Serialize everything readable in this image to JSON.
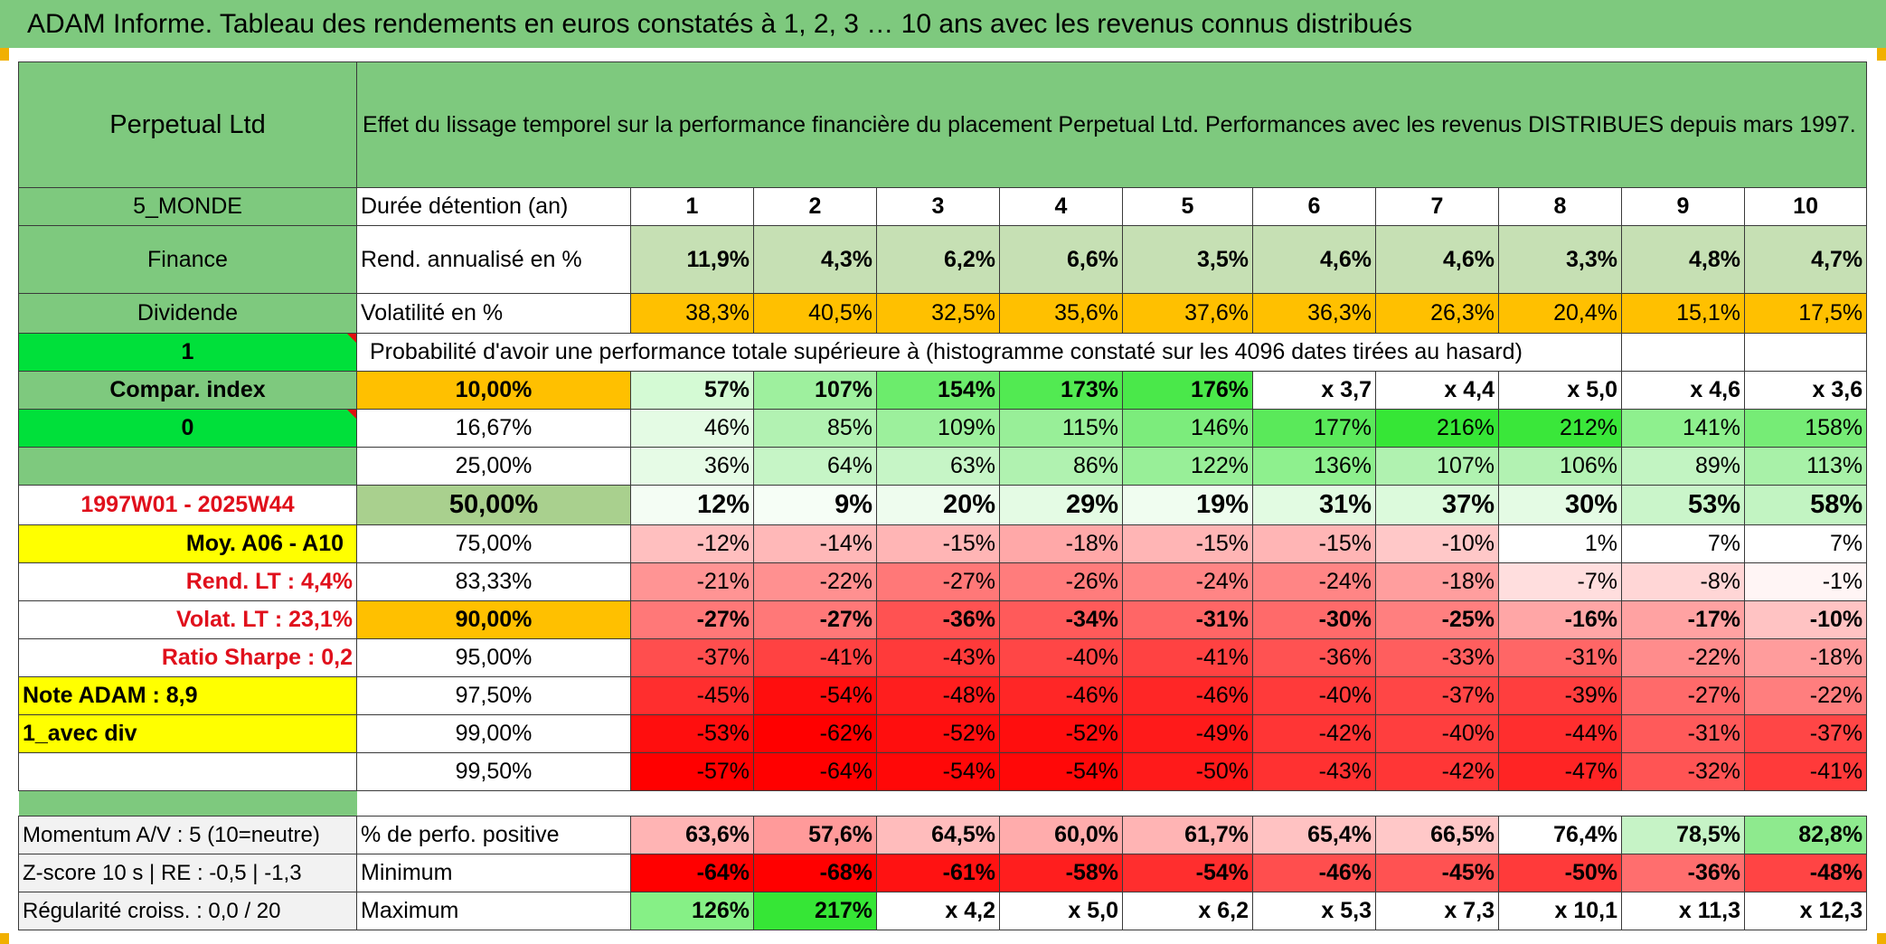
{
  "title": "ADAM Informe. Tableau des rendements en euros constatés à 1, 2, 3 … 10 ans avec les revenus connus distribués",
  "side": {
    "fund_name": "Perpetual Ltd",
    "zone": "5_MONDE",
    "sector": "Finance",
    "income": "Dividende",
    "flag1": "1",
    "compar_index": "Compar. index",
    "flag2": "0",
    "period": "1997W01 - 2025W44",
    "avg_label": "Moy. A06 - A10",
    "rend_lt": "Rend. LT :   4,4%",
    "volat_lt": "Volat. LT :   23,1%",
    "sharpe": "Ratio Sharpe :    0,2",
    "note": "Note ADAM : 8,9",
    "mode": "1_avec div",
    "momentum": "Momentum A/V : 5 (10=neutre)",
    "zscore": "Z-score 10 s | RE : -0,5 | -1,3",
    "regularite": "Régularité croiss. : 0,0 / 20"
  },
  "header_text": "Effet du lissage temporel sur la performance financière du placement Perpetual Ltd. Performances avec les revenus DISTRIBUES depuis mars 1997.",
  "years_label": "Durée détention (an)",
  "years": [
    "1",
    "2",
    "3",
    "4",
    "5",
    "6",
    "7",
    "8",
    "9",
    "10"
  ],
  "rend_label": "Rend. annualisé en %",
  "rend": [
    "11,9%",
    "4,3%",
    "6,2%",
    "6,6%",
    "3,5%",
    "4,6%",
    "4,6%",
    "3,3%",
    "4,8%",
    "4,7%"
  ],
  "vol_label": "Volatilité en %",
  "vol": [
    "38,3%",
    "40,5%",
    "32,5%",
    "35,6%",
    "37,6%",
    "36,3%",
    "26,3%",
    "20,4%",
    "15,1%",
    "17,5%"
  ],
  "prob_text": "Probabilité d'avoir une performance totale supérieure à (histogramme constaté sur les 4096 dates tirées au hasard)",
  "quantiles": [
    {
      "p": "10,00%",
      "vals": [
        "57%",
        "107%",
        "154%",
        "173%",
        "176%",
        "x 3,7",
        "x 4,4",
        "x 5,0",
        "x 4,6",
        "x 3,6"
      ]
    },
    {
      "p": "16,67%",
      "vals": [
        "46%",
        "85%",
        "109%",
        "115%",
        "146%",
        "177%",
        "216%",
        "212%",
        "141%",
        "158%"
      ]
    },
    {
      "p": "25,00%",
      "vals": [
        "36%",
        "64%",
        "63%",
        "86%",
        "122%",
        "136%",
        "107%",
        "106%",
        "89%",
        "113%"
      ]
    },
    {
      "p": "50,00%",
      "vals": [
        "12%",
        "9%",
        "20%",
        "29%",
        "19%",
        "31%",
        "37%",
        "30%",
        "53%",
        "58%"
      ]
    },
    {
      "p": "75,00%",
      "vals": [
        "-12%",
        "-14%",
        "-15%",
        "-18%",
        "-15%",
        "-15%",
        "-10%",
        "1%",
        "7%",
        "7%"
      ]
    },
    {
      "p": "83,33%",
      "vals": [
        "-21%",
        "-22%",
        "-27%",
        "-26%",
        "-24%",
        "-24%",
        "-18%",
        "-7%",
        "-8%",
        "-1%"
      ]
    },
    {
      "p": "90,00%",
      "vals": [
        "-27%",
        "-27%",
        "-36%",
        "-34%",
        "-31%",
        "-30%",
        "-25%",
        "-16%",
        "-17%",
        "-10%"
      ]
    },
    {
      "p": "95,00%",
      "vals": [
        "-37%",
        "-41%",
        "-43%",
        "-40%",
        "-41%",
        "-36%",
        "-33%",
        "-31%",
        "-22%",
        "-18%"
      ]
    },
    {
      "p": "97,50%",
      "vals": [
        "-45%",
        "-54%",
        "-48%",
        "-46%",
        "-46%",
        "-40%",
        "-37%",
        "-39%",
        "-27%",
        "-22%"
      ]
    },
    {
      "p": "99,00%",
      "vals": [
        "-53%",
        "-62%",
        "-52%",
        "-52%",
        "-49%",
        "-42%",
        "-40%",
        "-44%",
        "-31%",
        "-37%"
      ]
    },
    {
      "p": "99,50%",
      "vals": [
        "-57%",
        "-64%",
        "-54%",
        "-54%",
        "-50%",
        "-43%",
        "-42%",
        "-47%",
        "-32%",
        "-41%"
      ]
    }
  ],
  "pos_label": "% de perfo. positive",
  "pos": [
    "63,6%",
    "57,6%",
    "64,5%",
    "60,0%",
    "61,7%",
    "65,4%",
    "66,5%",
    "76,4%",
    "78,5%",
    "82,8%"
  ],
  "min_label": "Minimum",
  "min": [
    "-64%",
    "-68%",
    "-61%",
    "-58%",
    "-54%",
    "-46%",
    "-45%",
    "-50%",
    "-36%",
    "-48%"
  ],
  "max_label": "Maximum",
  "max": [
    "126%",
    "217%",
    "x 4,2",
    "x 5,0",
    "x 6,2",
    "x 5,3",
    "x 7,3",
    "x 10,1",
    "x 11,3",
    "x 12,3"
  ],
  "colors": {
    "title_green": "#7ec97e",
    "rend_green": "#c6e0b4",
    "vol_orange": "#ffc000",
    "label_yellow": "#ffff00",
    "flag_green": "#00e03a",
    "median_green": "#a9d08e"
  },
  "cell_colors": {
    "quantiles": [
      [
        "#d4fad4",
        "#9ef09e",
        "#6cec6c",
        "#52ea52",
        "#4ae84a",
        "#ffffff",
        "#ffffff",
        "#ffffff",
        "#ffffff",
        "#ffffff"
      ],
      [
        "#e4fbe4",
        "#b2f2b2",
        "#9cf09c",
        "#98ef98",
        "#7cec7c",
        "#5ae95a",
        "#36e636",
        "#3ae73a",
        "#8ef08e",
        "#76ec76"
      ],
      [
        "#e6fbe6",
        "#c6f5c6",
        "#c6f5c6",
        "#b0f2b0",
        "#98ef98",
        "#8ef08e",
        "#b0f2b0",
        "#b2f2b2",
        "#c2f4c2",
        "#a8f1a8"
      ],
      [
        "#f4fdf4",
        "#f6fef6",
        "#eefcee",
        "#e4fbe4",
        "#f0fdf0",
        "#e2fbe2",
        "#dcfadc",
        "#e4fbe4",
        "#caf5ca",
        "#c2f4c2"
      ],
      [
        "#ffbfbf",
        "#ffb8b8",
        "#ffb5b5",
        "#ffa8a8",
        "#ffb5b5",
        "#ffb5b5",
        "#ffc8c8",
        "#ffffff",
        "#ffffff",
        "#ffffff"
      ],
      [
        "#ff9494",
        "#ff9090",
        "#ff7878",
        "#ff7c7c",
        "#ff8585",
        "#ff8585",
        "#ff9e9e",
        "#ffdede",
        "#ffd6d6",
        "#fff5f5"
      ],
      [
        "#ff7878",
        "#ff7878",
        "#ff5252",
        "#ff5a5a",
        "#ff6666",
        "#ff6a6a",
        "#ff7f7f",
        "#ffa6a6",
        "#ffa2a2",
        "#ffc3c3"
      ],
      [
        "#ff4e4e",
        "#ff4242",
        "#ff3a3a",
        "#ff4646",
        "#ff4242",
        "#ff5252",
        "#ff5e5e",
        "#ff6666",
        "#ff8c8c",
        "#ff9c9c"
      ],
      [
        "#ff2e2e",
        "#ff0e0e",
        "#ff1e1e",
        "#ff2626",
        "#ff2626",
        "#ff3a3a",
        "#ff4646",
        "#ff3e3e",
        "#ff6a6a",
        "#ff7e7e"
      ],
      [
        "#ff0e0e",
        "#ff0000",
        "#ff0e0e",
        "#ff0e0e",
        "#ff1a1a",
        "#ff3535",
        "#ff3e3e",
        "#ff2e2e",
        "#ff5a5a",
        "#ff4646"
      ],
      [
        "#ff0000",
        "#ff0000",
        "#ff0808",
        "#ff0808",
        "#ff1a1a",
        "#ff3131",
        "#ff3636",
        "#ff2424",
        "#ff5454",
        "#ff3a3a"
      ]
    ],
    "pos": [
      "#ffb4b4",
      "#ff9a9a",
      "#ffbcbc",
      "#ffacac",
      "#ffb4b4",
      "#ffc2c2",
      "#ffc8c8",
      "#ffffff",
      "#c6f3c6",
      "#8eea8e"
    ],
    "min": [
      "#ff0000",
      "#ff0000",
      "#ff1212",
      "#ff1e1e",
      "#ff2e2e",
      "#ff4e4e",
      "#ff5252",
      "#ff3a3a",
      "#ff6e6e",
      "#ff4444"
    ],
    "max": [
      "#86f086",
      "#36e636",
      "#ffffff",
      "#ffffff",
      "#ffffff",
      "#ffffff",
      "#ffffff",
      "#ffffff",
      "#ffffff",
      "#ffffff"
    ]
  }
}
